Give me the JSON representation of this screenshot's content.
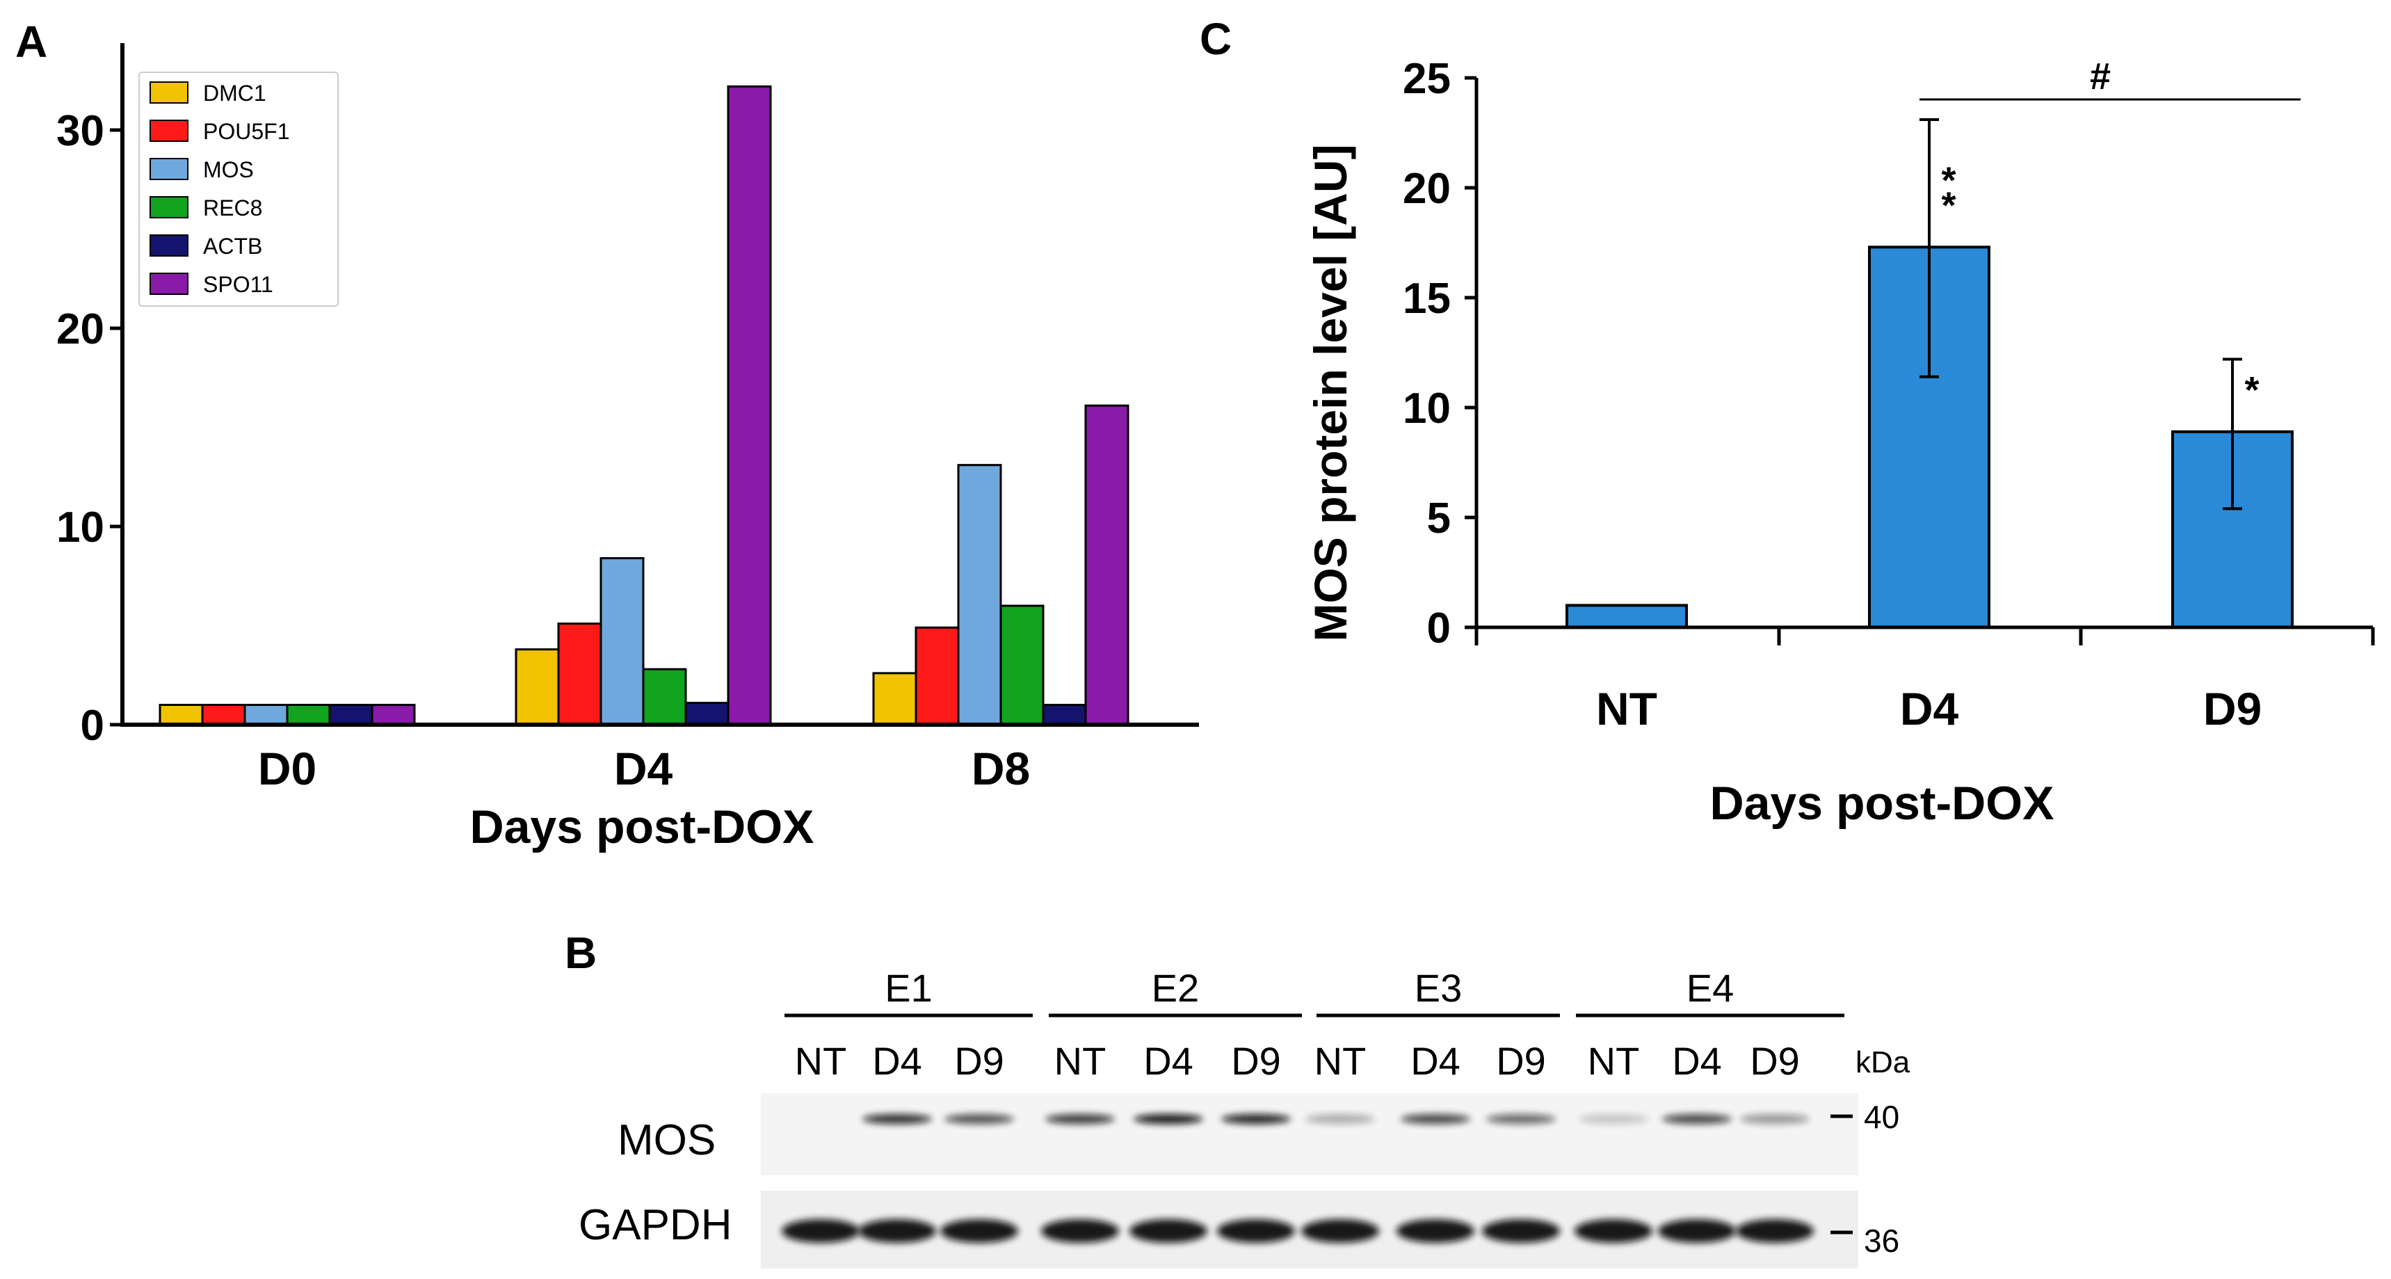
{
  "panels": {
    "a_label": "A",
    "b_label": "B",
    "c_label": "C"
  },
  "chart_data": [
    {
      "panel": "A",
      "type": "bar",
      "categories": [
        "D0",
        "D4",
        "D8"
      ],
      "series": [
        {
          "name": "DMC1",
          "color": "#f2c300",
          "values": [
            1.0,
            3.8,
            2.6
          ]
        },
        {
          "name": "POU5F1",
          "color": "#ff1a1a",
          "values": [
            1.0,
            5.1,
            4.9
          ]
        },
        {
          "name": "MOS",
          "color": "#6fa8dc",
          "values": [
            1.0,
            8.4,
            13.1
          ]
        },
        {
          "name": "REC8",
          "color": "#12a31f",
          "values": [
            1.0,
            2.8,
            6.0
          ]
        },
        {
          "name": "ACTB",
          "color": "#14146e",
          "values": [
            1.0,
            1.1,
            1.0
          ]
        },
        {
          "name": "SPO11",
          "color": "#8a1aa8",
          "values": [
            1.0,
            32.2,
            16.1
          ]
        }
      ],
      "yticks": [
        0,
        10,
        20,
        30
      ],
      "ylim": [
        0,
        33
      ],
      "xlabel": "Days post-DOX",
      "ylabel": "",
      "legend": "top-left"
    },
    {
      "panel": "C",
      "type": "bar",
      "categories": [
        "NT",
        "D4",
        "D9"
      ],
      "values": [
        1.0,
        17.3,
        8.9
      ],
      "error_low": [
        1.0,
        11.4,
        5.4
      ],
      "error_high": [
        1.0,
        23.1,
        12.2
      ],
      "significance": [
        "",
        "*\n*",
        "*"
      ],
      "bracket": {
        "from": "D4",
        "to": "D9",
        "label": "#"
      },
      "bar_color": "#2a8ad8",
      "yticks": [
        0,
        5,
        10,
        15,
        20,
        25
      ],
      "ylim": [
        0,
        25
      ],
      "xlabel": "Days post-DOX",
      "ylabel": "MOS protein level [AU]"
    }
  ],
  "blot": {
    "groups": [
      "E1",
      "E2",
      "E3",
      "E4"
    ],
    "lanes": [
      "NT",
      "D4",
      "D9"
    ],
    "unit": "kDa",
    "rows": [
      {
        "label": "MOS",
        "marker": "40"
      },
      {
        "label": "GAPDH",
        "marker": "36"
      }
    ]
  }
}
